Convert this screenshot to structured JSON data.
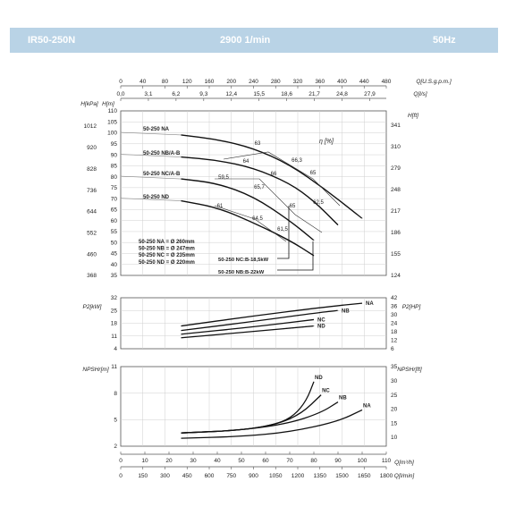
{
  "header": {
    "model": "IR50-250N",
    "speed": "2900 1/min",
    "frequency": "50Hz",
    "background": "#b9d3e6"
  },
  "chart_data": [
    {
      "type": "line",
      "name": "head",
      "top_axes": [
        {
          "unit": "Q[U.S.g.p.m.]",
          "ticks": [
            "0",
            "40",
            "80",
            "120",
            "160",
            "200",
            "240",
            "280",
            "320",
            "360",
            "400",
            "440",
            "480"
          ]
        },
        {
          "unit": "Q[l/s]",
          "ticks": [
            "0,0",
            "3,1",
            "6,2",
            "9,3",
            "12,4",
            "15,5",
            "18,6",
            "21,7",
            "24,8",
            "27,9"
          ]
        }
      ],
      "left_axes": [
        {
          "unit": "H[kPa]",
          "ticks": [
            "1012",
            "920",
            "828",
            "736",
            "644",
            "552",
            "460",
            "368"
          ]
        },
        {
          "unit": "H[m]",
          "ticks": [
            "110",
            "105",
            "100",
            "95",
            "90",
            "85",
            "80",
            "75",
            "70",
            "65",
            "60",
            "55",
            "50",
            "45",
            "40",
            "35"
          ]
        }
      ],
      "right_axis": {
        "unit": "H[ft]",
        "ticks": [
          "341",
          "310",
          "279",
          "248",
          "217",
          "186",
          "155",
          "124"
        ]
      },
      "ylim": [
        35,
        110
      ],
      "xlim": [
        0,
        110
      ],
      "grid": true,
      "series": [
        {
          "name": "50-250 NA",
          "x": [
            25,
            40,
            55,
            70,
            85,
            100
          ],
          "y": [
            99,
            97,
            93,
            85.5,
            74,
            61
          ]
        },
        {
          "name": "50-250 NB/A-B",
          "x": [
            25,
            40,
            55,
            70,
            80,
            90
          ],
          "y": [
            89,
            87.5,
            84,
            77,
            69,
            58
          ]
        },
        {
          "name": "50-250 NC/A-B",
          "x": [
            25,
            40,
            55,
            70,
            80
          ],
          "y": [
            79,
            77,
            71,
            60,
            51
          ]
        },
        {
          "name": "50-250 ND",
          "x": [
            25,
            40,
            55,
            70,
            80
          ],
          "y": [
            69,
            66,
            59,
            51,
            44
          ]
        }
      ],
      "efficiency_label": "η [%]",
      "efficiency_values": [
        "63",
        "66,3",
        "65",
        "62,5",
        "64",
        "66",
        "59,5",
        "65,7",
        "65",
        "61",
        "64,5",
        "61,5"
      ],
      "impeller_note": [
        "50-250 NA = Ø 260mm",
        "50-250 NB = Ø 247mm",
        "50-250 NC = Ø 235mm",
        "50-250 ND = Ø 220mm"
      ],
      "motor_labels": [
        "50-250 NC:B-18,5kW",
        "50-250 NB:B-22kW"
      ]
    },
    {
      "type": "line",
      "name": "power",
      "left_axis": {
        "unit": "P2[kW]",
        "ticks": [
          "32",
          "25",
          "18",
          "11",
          "4"
        ]
      },
      "right_axis": {
        "unit": "P2[HP]",
        "ticks": [
          "42",
          "36",
          "30",
          "24",
          "18",
          "12",
          "6"
        ]
      },
      "ylim": [
        4,
        32
      ],
      "xlim": [
        0,
        110
      ],
      "grid": true,
      "series": [
        {
          "name": "NA",
          "x": [
            25,
            55,
            85,
            100
          ],
          "y": [
            16.5,
            22,
            27,
            29
          ]
        },
        {
          "name": "NB",
          "x": [
            25,
            55,
            80,
            90
          ],
          "y": [
            14,
            19,
            23.5,
            25
          ]
        },
        {
          "name": "NC",
          "x": [
            25,
            55,
            80
          ],
          "y": [
            12,
            16,
            20
          ]
        },
        {
          "name": "ND",
          "x": [
            25,
            55,
            80
          ],
          "y": [
            10,
            13.5,
            16.5
          ]
        }
      ]
    },
    {
      "type": "line",
      "name": "npsh",
      "left_axis": {
        "unit": "NPSHr[m]",
        "ticks": [
          "11",
          "8",
          "5",
          "2"
        ]
      },
      "right_axis": {
        "unit": "NPSHr[ft]",
        "ticks": [
          "35",
          "30",
          "25",
          "20",
          "15",
          "10"
        ]
      },
      "bottom_axes": [
        {
          "unit": "Q[m³/h]",
          "ticks": [
            "0",
            "10",
            "20",
            "30",
            "40",
            "50",
            "60",
            "70",
            "80",
            "90",
            "100",
            "110"
          ]
        },
        {
          "unit": "Q[l/min]",
          "ticks": [
            "0",
            "150",
            "300",
            "450",
            "600",
            "750",
            "900",
            "1050",
            "1200",
            "1350",
            "1500",
            "1650",
            "1800"
          ]
        }
      ],
      "ylim": [
        2,
        11
      ],
      "xlim": [
        0,
        110
      ],
      "grid": true,
      "series": [
        {
          "name": "ND",
          "x": [
            25,
            50,
            65,
            72,
            77,
            80
          ],
          "y": [
            3.5,
            3.8,
            4.5,
            5.5,
            7.2,
            9.3
          ]
        },
        {
          "name": "NC",
          "x": [
            25,
            50,
            65,
            75,
            83
          ],
          "y": [
            3.5,
            3.8,
            4.5,
            5.7,
            7.8
          ]
        },
        {
          "name": "NB",
          "x": [
            25,
            50,
            70,
            83,
            90
          ],
          "y": [
            3.5,
            3.8,
            4.6,
            5.8,
            7
          ]
        },
        {
          "name": "NA",
          "x": [
            25,
            50,
            70,
            90,
            100
          ],
          "y": [
            2.9,
            3.1,
            3.6,
            4.8,
            6.1
          ]
        }
      ]
    }
  ]
}
